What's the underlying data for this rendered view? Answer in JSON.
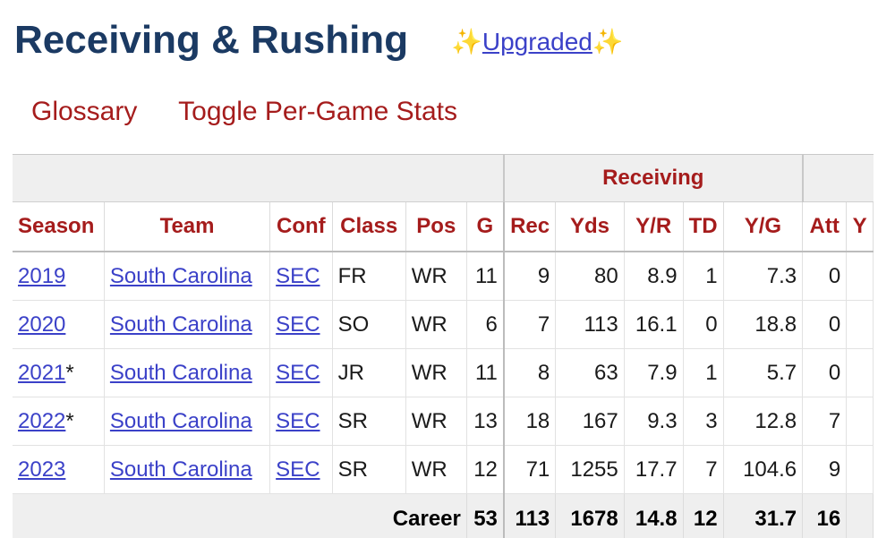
{
  "section": {
    "title": "Receiving & Rushing",
    "upgraded_prefix": "✨",
    "upgraded_label": "Upgraded",
    "upgraded_suffix": "✨"
  },
  "links": {
    "glossary": "Glossary",
    "toggle": "Toggle Per-Game Stats"
  },
  "table": {
    "over_header": {
      "receiving": "Receiving"
    },
    "columns": [
      "Season",
      "Team",
      "Conf",
      "Class",
      "Pos",
      "G",
      "Rec",
      "Yds",
      "Y/R",
      "TD",
      "Y/G",
      "Att",
      "Y"
    ],
    "rows": [
      {
        "season": "2019",
        "mark": "",
        "team": "South Carolina",
        "conf": "SEC",
        "class": "FR",
        "pos": "WR",
        "g": "11",
        "rec": "9",
        "yds": "80",
        "yr": "8.9",
        "td": "1",
        "yg": "7.3",
        "att": "0"
      },
      {
        "season": "2020",
        "mark": "",
        "team": "South Carolina",
        "conf": "SEC",
        "class": "SO",
        "pos": "WR",
        "g": "6",
        "rec": "7",
        "yds": "113",
        "yr": "16.1",
        "td": "0",
        "yg": "18.8",
        "att": "0"
      },
      {
        "season": "2021",
        "mark": "*",
        "team": "South Carolina",
        "conf": "SEC",
        "class": "JR",
        "pos": "WR",
        "g": "11",
        "rec": "8",
        "yds": "63",
        "yr": "7.9",
        "td": "1",
        "yg": "5.7",
        "att": "0"
      },
      {
        "season": "2022",
        "mark": "*",
        "team": "South Carolina",
        "conf": "SEC",
        "class": "SR",
        "pos": "WR",
        "g": "13",
        "rec": "18",
        "yds": "167",
        "yr": "9.3",
        "td": "3",
        "yg": "12.8",
        "att": "7"
      },
      {
        "season": "2023",
        "mark": "",
        "team": "South Carolina",
        "conf": "SEC",
        "class": "SR",
        "pos": "WR",
        "g": "12",
        "rec": "71",
        "yds": "1255",
        "yr": "17.7",
        "td": "7",
        "yg": "104.6",
        "att": "9"
      }
    ],
    "career": {
      "label": "Career",
      "g": "53",
      "rec": "113",
      "yds": "1678",
      "yr": "14.8",
      "td": "12",
      "yg": "31.7",
      "att": "16"
    }
  },
  "colors": {
    "title": "#1b3a63",
    "header_text": "#a51c1c",
    "link": "#3b41c8"
  }
}
